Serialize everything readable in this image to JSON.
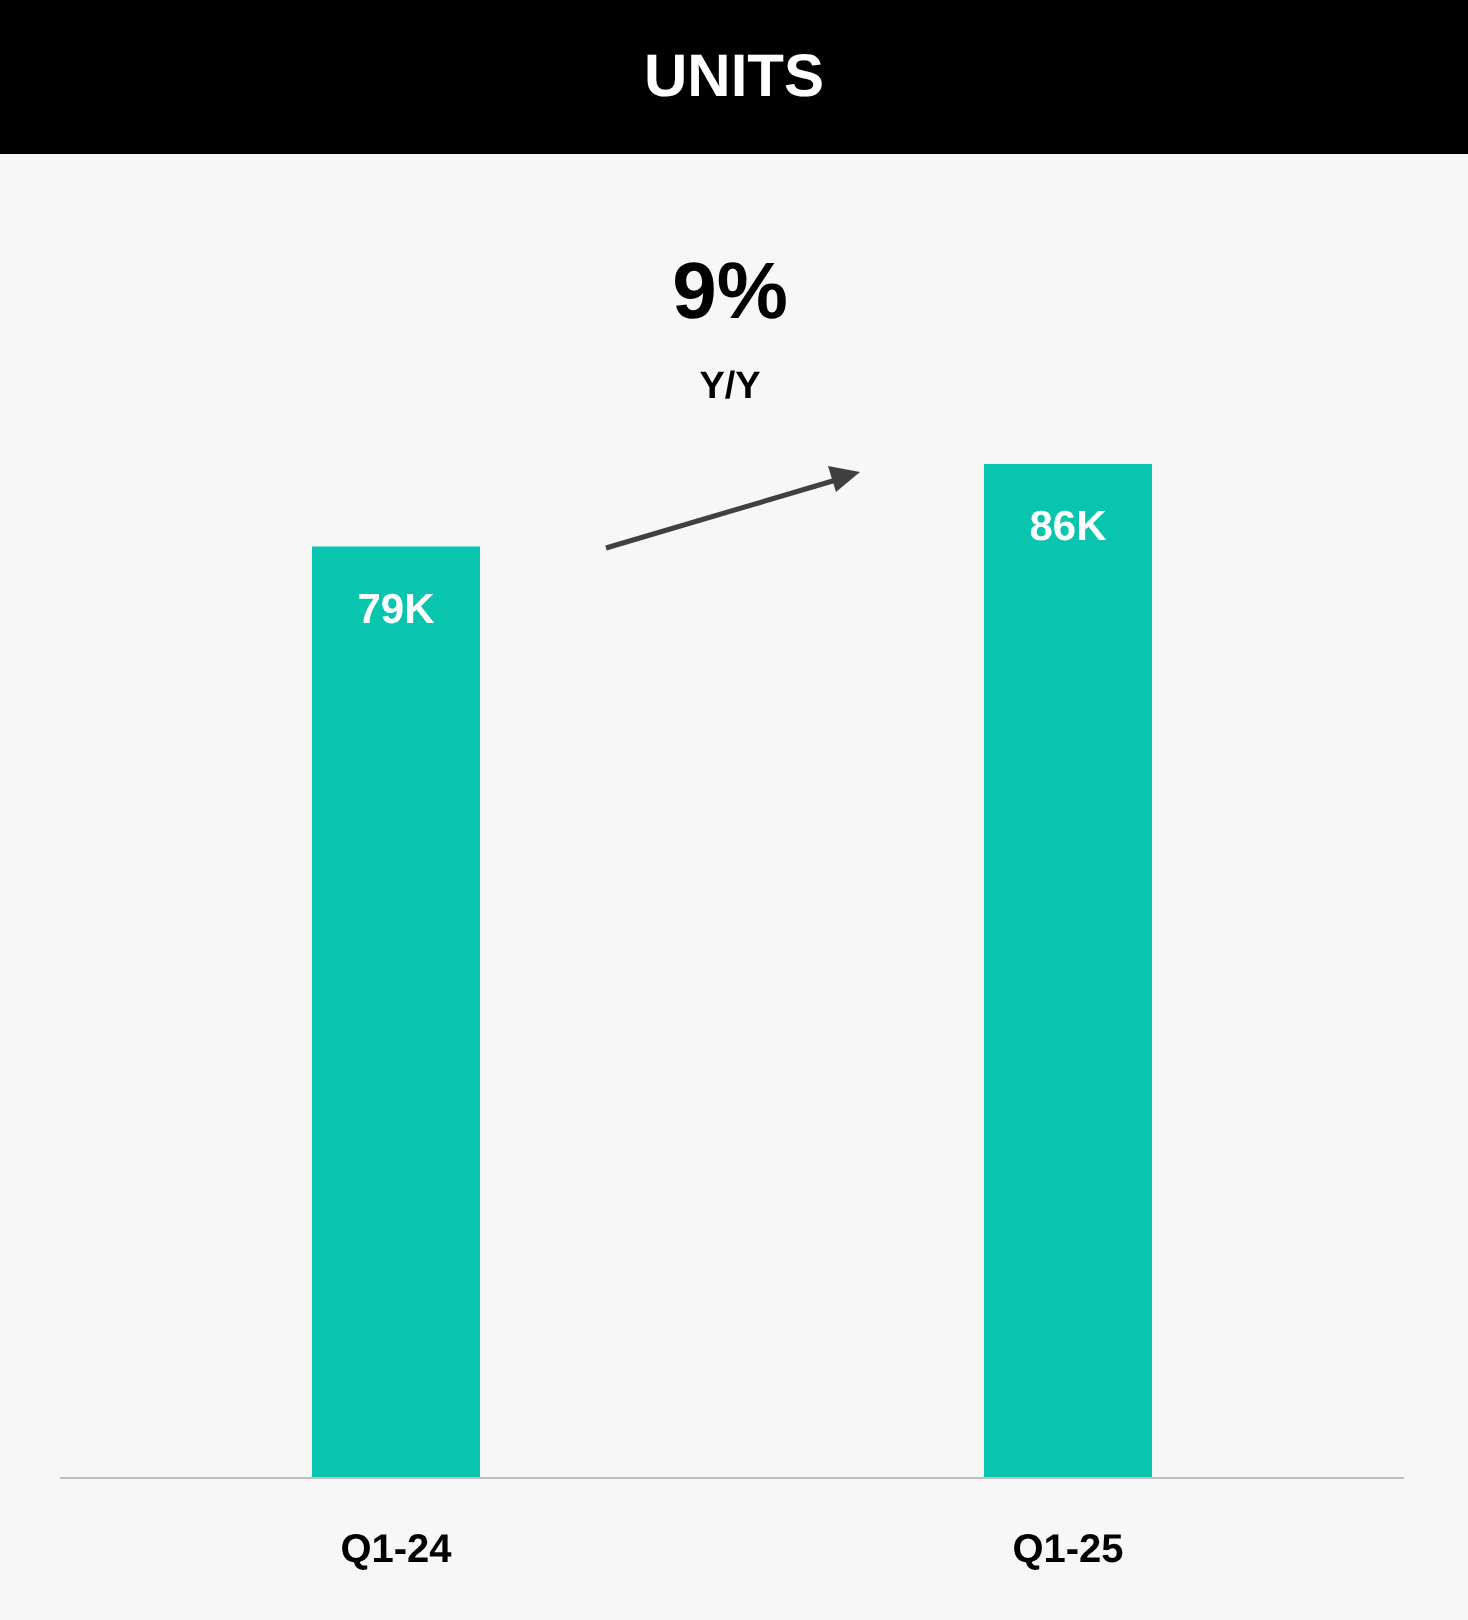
{
  "chart_data": {
    "type": "bar",
    "title": "UNITS",
    "categories": [
      "Q1-24",
      "Q1-25"
    ],
    "values": [
      79,
      86
    ],
    "value_labels": [
      "79K",
      "86K"
    ],
    "color": "#0ac5ad",
    "annotations": [
      "9%",
      "Y/Y"
    ]
  }
}
